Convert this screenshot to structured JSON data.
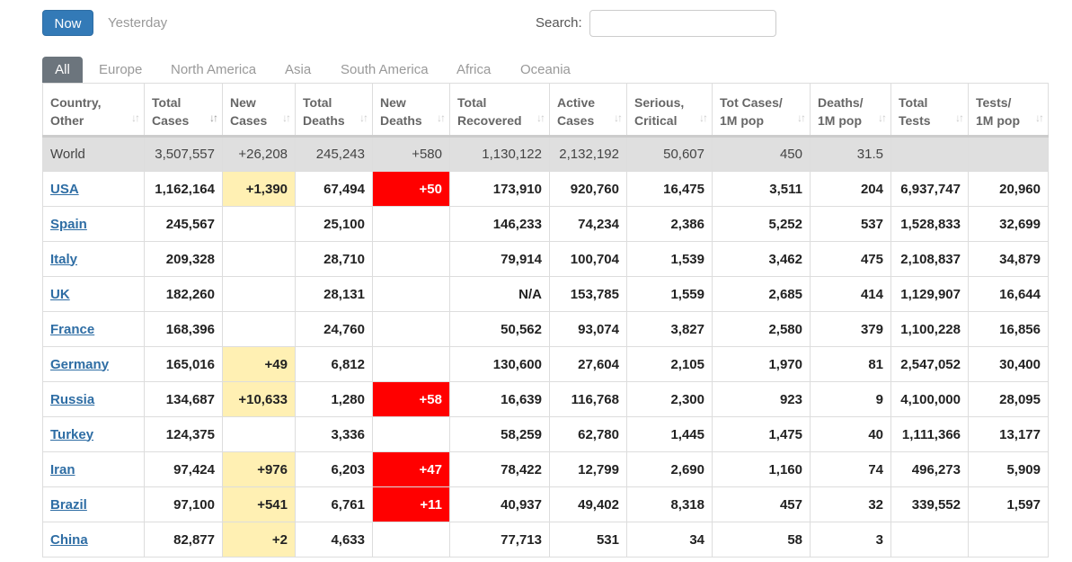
{
  "toolbar": {
    "now_label": "Now",
    "yesterday_label": "Yesterday",
    "search_label": "Search:",
    "search_value": ""
  },
  "tabs": [
    {
      "label": "All",
      "active": true
    },
    {
      "label": "Europe"
    },
    {
      "label": "North America"
    },
    {
      "label": "Asia"
    },
    {
      "label": "South America"
    },
    {
      "label": "Africa"
    },
    {
      "label": "Oceania"
    }
  ],
  "colors": {
    "accent": "#337ab7",
    "new_cases_highlight": "#fff0b3",
    "new_deaths_highlight": "#ff0000",
    "world_row": "#dfdfdf",
    "link": "#2e6da4"
  },
  "table": {
    "headers": [
      [
        "Country,",
        "Other"
      ],
      [
        "Total",
        "Cases"
      ],
      [
        "New",
        "Cases"
      ],
      [
        "Total",
        "Deaths"
      ],
      [
        "New",
        "Deaths"
      ],
      [
        "Total",
        "Recovered"
      ],
      [
        "Active",
        "Cases"
      ],
      [
        "Serious,",
        "Critical"
      ],
      [
        "Tot Cases/",
        "1M pop"
      ],
      [
        "Deaths/",
        "1M pop"
      ],
      [
        "Total",
        "Tests"
      ],
      [
        "Tests/",
        "1M pop"
      ]
    ],
    "world": [
      "World",
      "3,507,557",
      "+26,208",
      "245,243",
      "+580",
      "1,130,122",
      "2,132,192",
      "50,607",
      "450",
      "31.5",
      "",
      ""
    ],
    "rows": [
      [
        "USA",
        "1,162,164",
        "+1,390",
        "67,494",
        "+50",
        "173,910",
        "920,760",
        "16,475",
        "3,511",
        "204",
        "6,937,747",
        "20,960"
      ],
      [
        "Spain",
        "245,567",
        "",
        "25,100",
        "",
        "146,233",
        "74,234",
        "2,386",
        "5,252",
        "537",
        "1,528,833",
        "32,699"
      ],
      [
        "Italy",
        "209,328",
        "",
        "28,710",
        "",
        "79,914",
        "100,704",
        "1,539",
        "3,462",
        "475",
        "2,108,837",
        "34,879"
      ],
      [
        "UK",
        "182,260",
        "",
        "28,131",
        "",
        "N/A",
        "153,785",
        "1,559",
        "2,685",
        "414",
        "1,129,907",
        "16,644"
      ],
      [
        "France",
        "168,396",
        "",
        "24,760",
        "",
        "50,562",
        "93,074",
        "3,827",
        "2,580",
        "379",
        "1,100,228",
        "16,856"
      ],
      [
        "Germany",
        "165,016",
        "+49",
        "6,812",
        "",
        "130,600",
        "27,604",
        "2,105",
        "1,970",
        "81",
        "2,547,052",
        "30,400"
      ],
      [
        "Russia",
        "134,687",
        "+10,633",
        "1,280",
        "+58",
        "16,639",
        "116,768",
        "2,300",
        "923",
        "9",
        "4,100,000",
        "28,095"
      ],
      [
        "Turkey",
        "124,375",
        "",
        "3,336",
        "",
        "58,259",
        "62,780",
        "1,445",
        "1,475",
        "40",
        "1,111,366",
        "13,177"
      ],
      [
        "Iran",
        "97,424",
        "+976",
        "6,203",
        "+47",
        "78,422",
        "12,799",
        "2,690",
        "1,160",
        "74",
        "496,273",
        "5,909"
      ],
      [
        "Brazil",
        "97,100",
        "+541",
        "6,761",
        "+11",
        "40,937",
        "49,402",
        "8,318",
        "457",
        "32",
        "339,552",
        "1,597"
      ],
      [
        "China",
        "82,877",
        "+2",
        "4,633",
        "",
        "77,713",
        "531",
        "34",
        "58",
        "3",
        "",
        ""
      ]
    ]
  }
}
